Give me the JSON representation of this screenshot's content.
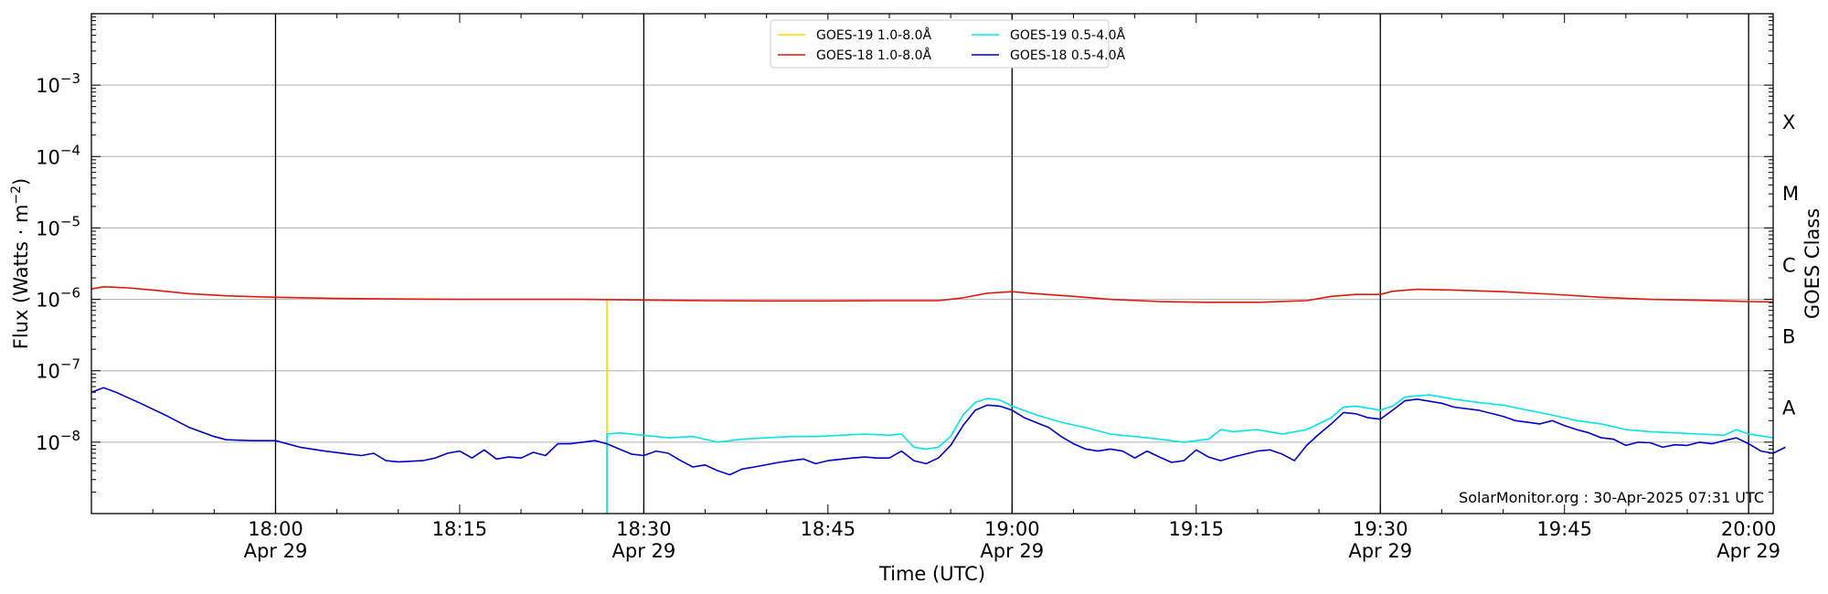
{
  "chart_data": {
    "type": "line",
    "xlabel": "Time (UTC)",
    "ylabel": "Flux (Watts · m",
    "ylabel_sup": "−2",
    "ylabel_tail": ")",
    "y2label": "GOES Class",
    "y_scale": "log",
    "ylim": [
      1e-09,
      0.01
    ],
    "xlim": [
      "17:45",
      "20:02"
    ],
    "grid": "horizontal at decades, vertical black lines at half hours",
    "legend_placement": "top-center",
    "y_ticks": [
      {
        "exp": -8,
        "base": "10",
        "sup": "−8"
      },
      {
        "exp": -7,
        "base": "10",
        "sup": "−7"
      },
      {
        "exp": -6,
        "base": "10",
        "sup": "−6"
      },
      {
        "exp": -5,
        "base": "10",
        "sup": "−5"
      },
      {
        "exp": -4,
        "base": "10",
        "sup": "−4"
      },
      {
        "exp": -3,
        "base": "10",
        "sup": "−3"
      }
    ],
    "x_ticks": [
      {
        "t": "18:00",
        "label": "18:00",
        "date": "Apr 29",
        "vline": true
      },
      {
        "t": "18:15",
        "label": "18:15",
        "date": "",
        "vline": false
      },
      {
        "t": "18:30",
        "label": "18:30",
        "date": "Apr 29",
        "vline": true
      },
      {
        "t": "18:45",
        "label": "18:45",
        "date": "",
        "vline": false
      },
      {
        "t": "19:00",
        "label": "19:00",
        "date": "Apr 29",
        "vline": true
      },
      {
        "t": "19:15",
        "label": "19:15",
        "date": "",
        "vline": false
      },
      {
        "t": "19:30",
        "label": "19:30",
        "date": "Apr 29",
        "vline": true
      },
      {
        "t": "19:45",
        "label": "19:45",
        "date": "",
        "vline": false
      },
      {
        "t": "20:00",
        "label": "20:00",
        "date": "Apr 29",
        "vline": true
      }
    ],
    "goes_classes": [
      {
        "label": "A",
        "at": 3e-08
      },
      {
        "label": "B",
        "at": 3e-07
      },
      {
        "label": "C",
        "at": 3e-06
      },
      {
        "label": "M",
        "at": 3e-05
      },
      {
        "label": "X",
        "at": 0.0003
      }
    ],
    "series": [
      {
        "name": "GOES-19 1.0-8.0Å",
        "color": "#ffd700",
        "points": [
          [
            "18:27",
            1e-09
          ],
          [
            "18:27",
            9.8e-07
          ]
        ]
      },
      {
        "name": "GOES-18 1.0-8.0Å",
        "color": "#e3170a",
        "points": [
          [
            "17:45",
            1.4e-06
          ],
          [
            "17:46",
            1.5e-06
          ],
          [
            "17:48",
            1.45e-06
          ],
          [
            "17:50",
            1.35e-06
          ],
          [
            "17:53",
            1.2e-06
          ],
          [
            "17:56",
            1.12e-06
          ],
          [
            "18:00",
            1.07e-06
          ],
          [
            "18:05",
            1.03e-06
          ],
          [
            "18:10",
            1.01e-06
          ],
          [
            "18:15",
            1e-06
          ],
          [
            "18:20",
            1e-06
          ],
          [
            "18:25",
            1e-06
          ],
          [
            "18:30",
            9.8e-07
          ],
          [
            "18:35",
            9.6e-07
          ],
          [
            "18:40",
            9.5e-07
          ],
          [
            "18:45",
            9.5e-07
          ],
          [
            "18:50",
            9.6e-07
          ],
          [
            "18:54",
            9.6e-07
          ],
          [
            "18:56",
            1.05e-06
          ],
          [
            "18:58",
            1.22e-06
          ],
          [
            "19:00",
            1.28e-06
          ],
          [
            "19:02",
            1.2e-06
          ],
          [
            "19:05",
            1.1e-06
          ],
          [
            "19:08",
            1e-06
          ],
          [
            "19:12",
            9.3e-07
          ],
          [
            "19:16",
            9.1e-07
          ],
          [
            "19:20",
            9.1e-07
          ],
          [
            "19:24",
            9.6e-07
          ],
          [
            "19:26",
            1.1e-06
          ],
          [
            "19:28",
            1.17e-06
          ],
          [
            "19:30",
            1.17e-06
          ],
          [
            "19:31",
            1.3e-06
          ],
          [
            "19:33",
            1.38e-06
          ],
          [
            "19:36",
            1.35e-06
          ],
          [
            "19:40",
            1.28e-06
          ],
          [
            "19:44",
            1.18e-06
          ],
          [
            "19:48",
            1.07e-06
          ],
          [
            "19:52",
            1e-06
          ],
          [
            "19:56",
            9.7e-07
          ],
          [
            "20:00",
            9.3e-07
          ],
          [
            "20:02",
            9.2e-07
          ]
        ]
      },
      {
        "name": "GOES-19 0.5-4.0Å",
        "color": "#00e5e5",
        "points": [
          [
            "18:27",
            1e-09
          ],
          [
            "18:27",
            1.3e-08
          ],
          [
            "18:28",
            1.35e-08
          ],
          [
            "18:30",
            1.25e-08
          ],
          [
            "18:32",
            1.15e-08
          ],
          [
            "18:34",
            1.2e-08
          ],
          [
            "18:36",
            1e-08
          ],
          [
            "18:38",
            1.1e-08
          ],
          [
            "18:40",
            1.15e-08
          ],
          [
            "18:42",
            1.2e-08
          ],
          [
            "18:44",
            1.2e-08
          ],
          [
            "18:46",
            1.25e-08
          ],
          [
            "18:48",
            1.3e-08
          ],
          [
            "18:50",
            1.25e-08
          ],
          [
            "18:51",
            1.3e-08
          ],
          [
            "18:52",
            8.5e-09
          ],
          [
            "18:53",
            8e-09
          ],
          [
            "18:54",
            8.5e-09
          ],
          [
            "18:55",
            1.2e-08
          ],
          [
            "18:56",
            2.4e-08
          ],
          [
            "18:57",
            3.6e-08
          ],
          [
            "18:58",
            4.1e-08
          ],
          [
            "18:59",
            3.9e-08
          ],
          [
            "19:00",
            3.2e-08
          ],
          [
            "19:02",
            2.4e-08
          ],
          [
            "19:04",
            1.9e-08
          ],
          [
            "19:06",
            1.6e-08
          ],
          [
            "19:08",
            1.3e-08
          ],
          [
            "19:10",
            1.2e-08
          ],
          [
            "19:12",
            1.1e-08
          ],
          [
            "19:14",
            1e-08
          ],
          [
            "19:16",
            1.1e-08
          ],
          [
            "19:17",
            1.5e-08
          ],
          [
            "19:18",
            1.4e-08
          ],
          [
            "19:20",
            1.5e-08
          ],
          [
            "19:22",
            1.3e-08
          ],
          [
            "19:24",
            1.5e-08
          ],
          [
            "19:26",
            2.2e-08
          ],
          [
            "19:27",
            3.1e-08
          ],
          [
            "19:28",
            3.2e-08
          ],
          [
            "19:30",
            2.8e-08
          ],
          [
            "19:31",
            3.2e-08
          ],
          [
            "19:32",
            4.3e-08
          ],
          [
            "19:34",
            4.6e-08
          ],
          [
            "19:36",
            4e-08
          ],
          [
            "19:38",
            3.6e-08
          ],
          [
            "19:40",
            3.3e-08
          ],
          [
            "19:42",
            2.8e-08
          ],
          [
            "19:44",
            2.4e-08
          ],
          [
            "19:46",
            2e-08
          ],
          [
            "19:48",
            1.8e-08
          ],
          [
            "19:50",
            1.5e-08
          ],
          [
            "19:52",
            1.4e-08
          ],
          [
            "19:54",
            1.35e-08
          ],
          [
            "19:56",
            1.3e-08
          ],
          [
            "19:58",
            1.25e-08
          ],
          [
            "19:59",
            1.5e-08
          ],
          [
            "20:00",
            1.3e-08
          ],
          [
            "20:02",
            1.15e-08
          ]
        ]
      },
      {
        "name": "GOES-18 0.5-4.0Å",
        "color": "#0000cd",
        "points": [
          [
            "17:45",
            5e-08
          ],
          [
            "17:46",
            5.8e-08
          ],
          [
            "17:47",
            5e-08
          ],
          [
            "17:49",
            3.5e-08
          ],
          [
            "17:51",
            2.4e-08
          ],
          [
            "17:53",
            1.6e-08
          ],
          [
            "17:55",
            1.2e-08
          ],
          [
            "17:56",
            1.08e-08
          ],
          [
            "17:58",
            1.05e-08
          ],
          [
            "18:00",
            1.05e-08
          ],
          [
            "18:02",
            8.5e-09
          ],
          [
            "18:04",
            7.5e-09
          ],
          [
            "18:06",
            6.8e-09
          ],
          [
            "18:07",
            6.5e-09
          ],
          [
            "18:08",
            7e-09
          ],
          [
            "18:09",
            5.5e-09
          ],
          [
            "18:10",
            5.3e-09
          ],
          [
            "18:12",
            5.5e-09
          ],
          [
            "18:13",
            6e-09
          ],
          [
            "18:14",
            7e-09
          ],
          [
            "18:15",
            7.5e-09
          ],
          [
            "18:16",
            6e-09
          ],
          [
            "18:17",
            7.8e-09
          ],
          [
            "18:18",
            5.8e-09
          ],
          [
            "18:19",
            6.2e-09
          ],
          [
            "18:20",
            6e-09
          ],
          [
            "18:21",
            7.2e-09
          ],
          [
            "18:22",
            6.5e-09
          ],
          [
            "18:23",
            9.5e-09
          ],
          [
            "18:24",
            9.5e-09
          ],
          [
            "18:25",
            1e-08
          ],
          [
            "18:26",
            1.05e-08
          ],
          [
            "18:27",
            9.5e-09
          ],
          [
            "18:28",
            8e-09
          ],
          [
            "18:29",
            6.8e-09
          ],
          [
            "18:30",
            6.5e-09
          ],
          [
            "18:31",
            7.5e-09
          ],
          [
            "18:32",
            7e-09
          ],
          [
            "18:33",
            5.5e-09
          ],
          [
            "18:34",
            4.5e-09
          ],
          [
            "18:35",
            4.8e-09
          ],
          [
            "18:36",
            4e-09
          ],
          [
            "18:37",
            3.5e-09
          ],
          [
            "18:38",
            4.2e-09
          ],
          [
            "18:39",
            4.5e-09
          ],
          [
            "18:41",
            5.2e-09
          ],
          [
            "18:42",
            5.5e-09
          ],
          [
            "18:43",
            5.8e-09
          ],
          [
            "18:44",
            5e-09
          ],
          [
            "18:45",
            5.5e-09
          ],
          [
            "18:47",
            6e-09
          ],
          [
            "18:48",
            6.2e-09
          ],
          [
            "18:49",
            6e-09
          ],
          [
            "18:50",
            6e-09
          ],
          [
            "18:51",
            7.5e-09
          ],
          [
            "18:52",
            5.5e-09
          ],
          [
            "18:53",
            5e-09
          ],
          [
            "18:54",
            6e-09
          ],
          [
            "18:55",
            9e-09
          ],
          [
            "18:56",
            1.7e-08
          ],
          [
            "18:57",
            2.8e-08
          ],
          [
            "18:58",
            3.3e-08
          ],
          [
            "18:59",
            3.2e-08
          ],
          [
            "19:00",
            2.8e-08
          ],
          [
            "19:01",
            2.2e-08
          ],
          [
            "19:03",
            1.6e-08
          ],
          [
            "19:04",
            1.2e-08
          ],
          [
            "19:05",
            9.5e-09
          ],
          [
            "19:06",
            8e-09
          ],
          [
            "19:07",
            7.5e-09
          ],
          [
            "19:08",
            8e-09
          ],
          [
            "19:09",
            7.5e-09
          ],
          [
            "19:10",
            6e-09
          ],
          [
            "19:11",
            7.5e-09
          ],
          [
            "19:12",
            6.2e-09
          ],
          [
            "19:13",
            5.2e-09
          ],
          [
            "19:14",
            5.5e-09
          ],
          [
            "19:15",
            7.8e-09
          ],
          [
            "19:16",
            6.2e-09
          ],
          [
            "19:17",
            5.5e-09
          ],
          [
            "19:18",
            6.2e-09
          ],
          [
            "19:19",
            6.8e-09
          ],
          [
            "19:20",
            7.5e-09
          ],
          [
            "19:21",
            7.8e-09
          ],
          [
            "19:22",
            6.8e-09
          ],
          [
            "19:23",
            5.5e-09
          ],
          [
            "19:24",
            9e-09
          ],
          [
            "19:25",
            1.3e-08
          ],
          [
            "19:26",
            1.8e-08
          ],
          [
            "19:27",
            2.6e-08
          ],
          [
            "19:28",
            2.5e-08
          ],
          [
            "19:29",
            2.2e-08
          ],
          [
            "19:30",
            2.1e-08
          ],
          [
            "19:31",
            2.8e-08
          ],
          [
            "19:32",
            3.8e-08
          ],
          [
            "19:33",
            4e-08
          ],
          [
            "19:35",
            3.5e-08
          ],
          [
            "19:36",
            3.1e-08
          ],
          [
            "19:38",
            2.8e-08
          ],
          [
            "19:40",
            2.3e-08
          ],
          [
            "19:41",
            2e-08
          ],
          [
            "19:42",
            1.9e-08
          ],
          [
            "19:43",
            1.8e-08
          ],
          [
            "19:44",
            2e-08
          ],
          [
            "19:45",
            1.7e-08
          ],
          [
            "19:46",
            1.5e-08
          ],
          [
            "19:47",
            1.35e-08
          ],
          [
            "19:48",
            1.15e-08
          ],
          [
            "19:49",
            1.1e-08
          ],
          [
            "19:50",
            9e-09
          ],
          [
            "19:51",
            1e-08
          ],
          [
            "19:52",
            9.8e-09
          ],
          [
            "19:53",
            8.5e-09
          ],
          [
            "19:54",
            9.2e-09
          ],
          [
            "19:55",
            9e-09
          ],
          [
            "19:56",
            1e-08
          ],
          [
            "19:57",
            9.5e-09
          ],
          [
            "19:58",
            1.05e-08
          ],
          [
            "19:59",
            1.15e-08
          ],
          [
            "20:00",
            9.5e-09
          ],
          [
            "20:01",
            7.5e-09
          ],
          [
            "20:02",
            7e-09
          ],
          [
            "20:03",
            8.5e-09
          ]
        ]
      }
    ]
  },
  "credit": "SolarMonitor.org : 30-Apr-2025 07:31 UTC"
}
